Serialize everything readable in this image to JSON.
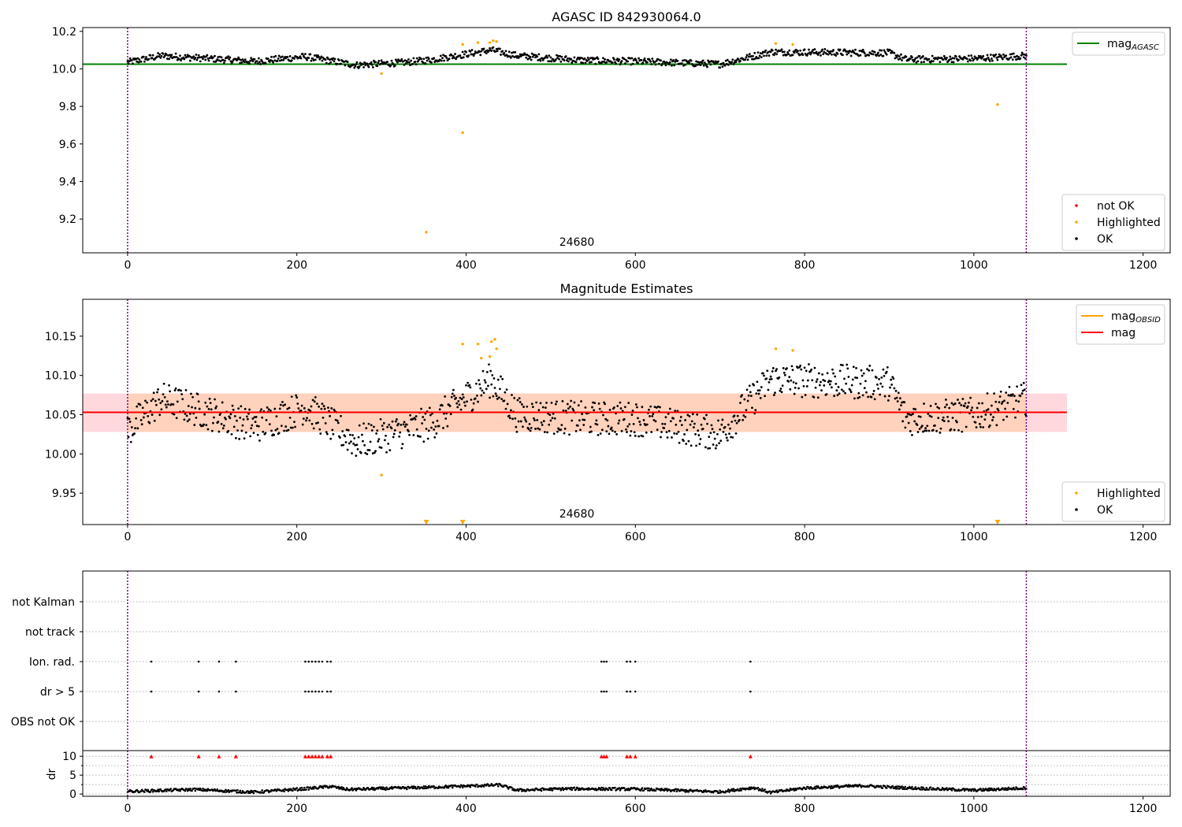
{
  "colors": {
    "ok": "#000000",
    "highlighted": "#ffa500",
    "not_ok": "#ff0000",
    "agasc_line": "#008000",
    "mag_line": "#ff0000",
    "mag_obsid": "#ffa500",
    "band_outer": "#ffd8de",
    "band_inner": "#ffd2bd",
    "vline": "#800080",
    "dr_marker": "#ff0000"
  },
  "chart_data": [
    {
      "id": "agasc",
      "type": "scatter",
      "title": "AGASC ID 842930064.0",
      "annotation": "24680",
      "xlim": [
        -53,
        1232
      ],
      "ylim": [
        9.02,
        10.22
      ],
      "xticks": [
        0,
        200,
        400,
        600,
        800,
        1000,
        1200
      ],
      "yticks": [
        9.2,
        9.4,
        9.6,
        9.8,
        10.0,
        10.2
      ],
      "ytick_labels": [
        "9.2",
        "9.4",
        "9.6",
        "9.8",
        "10.0",
        "10.2"
      ],
      "agasc_mag": 10.025,
      "agasc_line_x": [
        -53,
        1110
      ],
      "vlines_x": [
        0,
        1062
      ],
      "legend_top": {
        "placement": "upper right",
        "entries": [
          {
            "label": "mag",
            "sub": "AGASC",
            "style": "line",
            "color": "agasc_line"
          }
        ]
      },
      "legend_bottom": {
        "placement": "lower right",
        "entries": [
          {
            "label": "not OK",
            "style": "dot",
            "color": "not_ok"
          },
          {
            "label": "Highlighted",
            "style": "dot",
            "color": "highlighted"
          },
          {
            "label": "OK",
            "style": "dot",
            "color": "ok"
          }
        ]
      },
      "series": [
        {
          "name": "OK",
          "generated": true,
          "x_range": [
            0,
            1062
          ],
          "segments": [
            [
              0,
              10.035
            ],
            [
              40,
              10.07
            ],
            [
              150,
              10.04
            ],
            [
              210,
              10.065
            ],
            [
              270,
              10.02
            ],
            [
              330,
              10.035
            ],
            [
              360,
              10.05
            ],
            [
              430,
              10.1
            ],
            [
              460,
              10.07
            ],
            [
              540,
              10.045
            ],
            [
              600,
              10.04
            ],
            [
              700,
              10.025
            ],
            [
              760,
              10.09
            ],
            [
              900,
              10.085
            ],
            [
              920,
              10.05
            ],
            [
              1000,
              10.055
            ],
            [
              1062,
              10.07
            ]
          ]
        },
        {
          "name": "Highlighted",
          "points": [
            [
              300,
              9.975
            ],
            [
              353,
              9.13
            ],
            [
              396,
              10.13
            ],
            [
              396,
              9.66
            ],
            [
              414,
              10.14
            ],
            [
              428,
              10.14
            ],
            [
              432,
              10.15
            ],
            [
              436,
              10.145
            ],
            [
              766,
              10.135
            ],
            [
              786,
              10.13
            ],
            [
              1028,
              9.81
            ]
          ]
        }
      ]
    },
    {
      "id": "estimates",
      "type": "scatter",
      "title": "Magnitude Estimates",
      "annotation": "24680",
      "xlim": [
        -53,
        1232
      ],
      "ylim": [
        9.91,
        10.197
      ],
      "xticks": [
        0,
        200,
        400,
        600,
        800,
        1000,
        1200
      ],
      "yticks": [
        9.95,
        10.0,
        10.05,
        10.1,
        10.15
      ],
      "ytick_labels": [
        "9.95",
        "10.00",
        "10.05",
        "10.10",
        "10.15"
      ],
      "mag": 10.053,
      "mag_band_outer": [
        10.028,
        10.077
      ],
      "mag_band_inner": [
        10.028,
        10.077
      ],
      "mag_obsid_segments": [],
      "band_x": [
        -53,
        1110
      ],
      "inner_band_x": [
        0,
        1062
      ],
      "vlines_x": [
        0,
        1062
      ],
      "legend_top": {
        "placement": "upper right",
        "entries": [
          {
            "label": "mag",
            "sub": "OBSID",
            "style": "line",
            "color": "mag_obsid"
          },
          {
            "label": "mag",
            "sub": "",
            "style": "line",
            "color": "mag_line"
          }
        ]
      },
      "legend_bottom": {
        "placement": "lower right",
        "entries": [
          {
            "label": "Highlighted",
            "style": "dot",
            "color": "highlighted"
          },
          {
            "label": "OK",
            "style": "dot",
            "color": "ok"
          }
        ]
      },
      "series": [
        {
          "name": "OK",
          "generated": true,
          "x_range": [
            0,
            1062
          ],
          "segments": [
            [
              0,
              10.03
            ],
            [
              40,
              10.07
            ],
            [
              150,
              10.035
            ],
            [
              210,
              10.06
            ],
            [
              270,
              10.015
            ],
            [
              330,
              10.03
            ],
            [
              360,
              10.04
            ],
            [
              430,
              10.095
            ],
            [
              460,
              10.05
            ],
            [
              540,
              10.045
            ],
            [
              600,
              10.045
            ],
            [
              700,
              10.025
            ],
            [
              760,
              10.095
            ],
            [
              900,
              10.09
            ],
            [
              920,
              10.045
            ],
            [
              1000,
              10.05
            ],
            [
              1062,
              10.07
            ]
          ]
        },
        {
          "name": "Highlighted",
          "points": [
            [
              300,
              9.973
            ],
            [
              396,
              10.14
            ],
            [
              414,
              10.14
            ],
            [
              418,
              10.122
            ],
            [
              428,
              10.124
            ],
            [
              430,
              10.143
            ],
            [
              434,
              10.146
            ],
            [
              436,
              10.134
            ],
            [
              766,
              10.134
            ],
            [
              786,
              10.132
            ]
          ]
        },
        {
          "name": "Highlighted (off scale)",
          "marker": "triangle-down",
          "points": [
            [
              353,
              9.913
            ],
            [
              396,
              9.913
            ],
            [
              1028,
              9.913
            ]
          ]
        }
      ]
    },
    {
      "id": "flags",
      "type": "scatter",
      "xlim": [
        -53,
        1232
      ],
      "categories": [
        "not Kalman",
        "not track",
        "Ion. rad.",
        "dr > 5",
        "OBS not OK"
      ],
      "vlines_x": [
        0,
        1062
      ],
      "series": [
        {
          "name": "Ion. rad.",
          "x": [
            28,
            84,
            108,
            128,
            210,
            214,
            218,
            222,
            226,
            230,
            236,
            240,
            560,
            563,
            566,
            590,
            594,
            600,
            736
          ]
        },
        {
          "name": "dr > 5",
          "x": [
            28,
            84,
            108,
            128,
            210,
            214,
            218,
            222,
            226,
            230,
            236,
            240,
            560,
            563,
            566,
            590,
            594,
            600,
            736
          ]
        }
      ]
    },
    {
      "id": "dr",
      "type": "scatter",
      "ylabel": "dr",
      "xlim": [
        -53,
        1232
      ],
      "ylim": [
        -0.6,
        11.5
      ],
      "xticks": [
        0,
        200,
        400,
        600,
        800,
        1000,
        1200
      ],
      "yticks": [
        0,
        5,
        10
      ],
      "ytick_labels": [
        "0",
        "5",
        "10"
      ],
      "minor_yticks": [
        2.5,
        7.5
      ],
      "vlines_x": [
        0,
        1062
      ],
      "capped_marker_y": 10,
      "capped_x": [
        28,
        84,
        108,
        128,
        210,
        214,
        218,
        222,
        226,
        230,
        236,
        240,
        560,
        563,
        566,
        590,
        594,
        600,
        736
      ],
      "series": [
        {
          "name": "dr",
          "generated": true,
          "x_range": [
            0,
            1062
          ],
          "segments": [
            [
              0,
              0.7
            ],
            [
              80,
              1.2
            ],
            [
              150,
              0.5
            ],
            [
              210,
              1.4
            ],
            [
              240,
              2.0
            ],
            [
              260,
              1.2
            ],
            [
              360,
              1.8
            ],
            [
              440,
              2.4
            ],
            [
              460,
              1.0
            ],
            [
              520,
              1.4
            ],
            [
              600,
              1.3
            ],
            [
              700,
              0.6
            ],
            [
              740,
              1.7
            ],
            [
              760,
              0.4
            ],
            [
              800,
              1.6
            ],
            [
              870,
              2.2
            ],
            [
              900,
              1.8
            ],
            [
              1000,
              1.0
            ],
            [
              1062,
              1.6
            ]
          ]
        }
      ]
    }
  ]
}
